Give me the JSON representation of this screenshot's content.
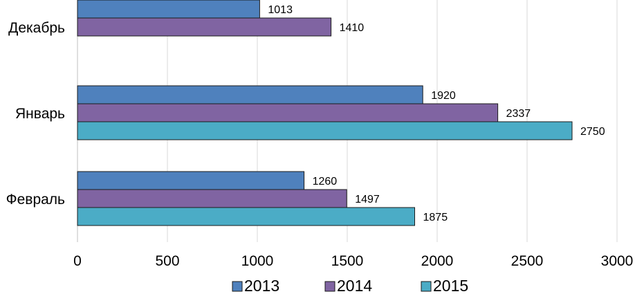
{
  "chart_data": {
    "type": "bar",
    "orientation": "horizontal",
    "title": "",
    "xlabel": "",
    "ylabel": "",
    "xlim": [
      0,
      3000
    ],
    "x_ticks": [
      0,
      500,
      1000,
      1500,
      2000,
      2500,
      3000
    ],
    "grid": true,
    "legend_position": "bottom",
    "categories": [
      "Декабрь",
      "Январь",
      "Февраль"
    ],
    "series": [
      {
        "name": "2013",
        "color": "#4f81bd",
        "values": [
          1013,
          1920,
          1260
        ]
      },
      {
        "name": "2014",
        "color": "#8064a2",
        "values": [
          1410,
          2337,
          1497
        ]
      },
      {
        "name": "2015",
        "color": "#4bacc6",
        "values": [
          null,
          2750,
          1875
        ]
      }
    ]
  }
}
